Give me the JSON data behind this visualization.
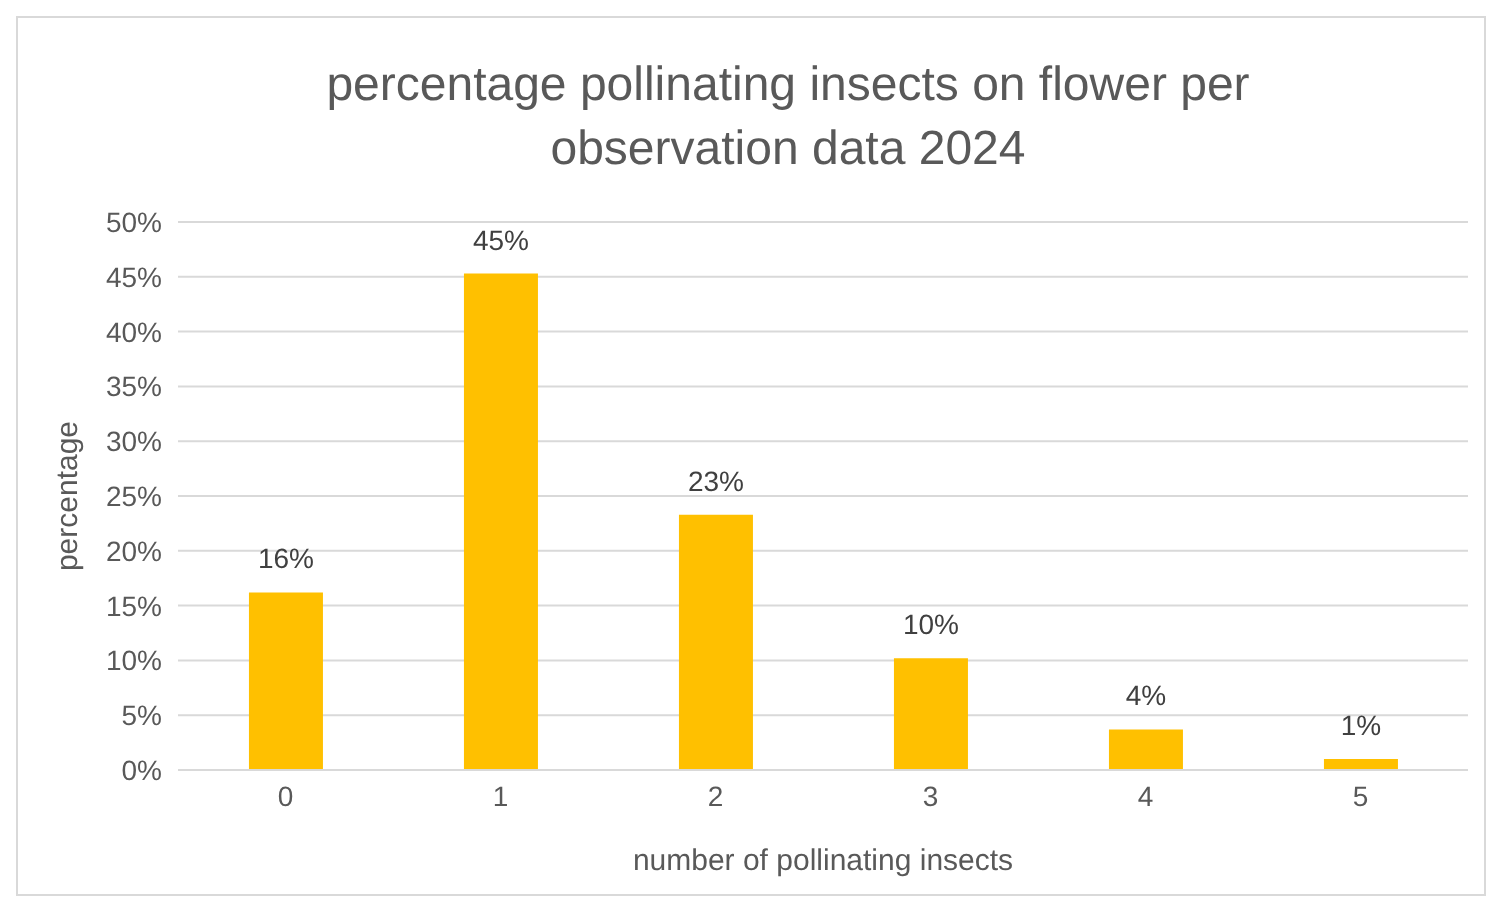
{
  "chart_data": {
    "type": "bar",
    "title": "percentage pollinating insects on flower per observation data 2024",
    "xlabel": "number of pollinating insects",
    "ylabel": "percentage",
    "categories": [
      "0",
      "1",
      "2",
      "3",
      "4",
      "5"
    ],
    "values": [
      16.2,
      45.3,
      23.3,
      10.2,
      3.7,
      1.0
    ],
    "value_labels": [
      "16%",
      "45%",
      "23%",
      "10%",
      "4%",
      "1%"
    ],
    "color": "#ffc000",
    "ylim": [
      0,
      50
    ],
    "yticks": [
      {
        "value": 0,
        "label": "0%"
      },
      {
        "value": 5,
        "label": "5%"
      },
      {
        "value": 10,
        "label": "10%"
      },
      {
        "value": 15,
        "label": "15%"
      },
      {
        "value": 20,
        "label": "20%"
      },
      {
        "value": 25,
        "label": "25%"
      },
      {
        "value": 30,
        "label": "30%"
      },
      {
        "value": 35,
        "label": "35%"
      },
      {
        "value": 40,
        "label": "40%"
      },
      {
        "value": 45,
        "label": "45%"
      },
      {
        "value": 50,
        "label": "50%"
      }
    ],
    "grid": "y"
  }
}
